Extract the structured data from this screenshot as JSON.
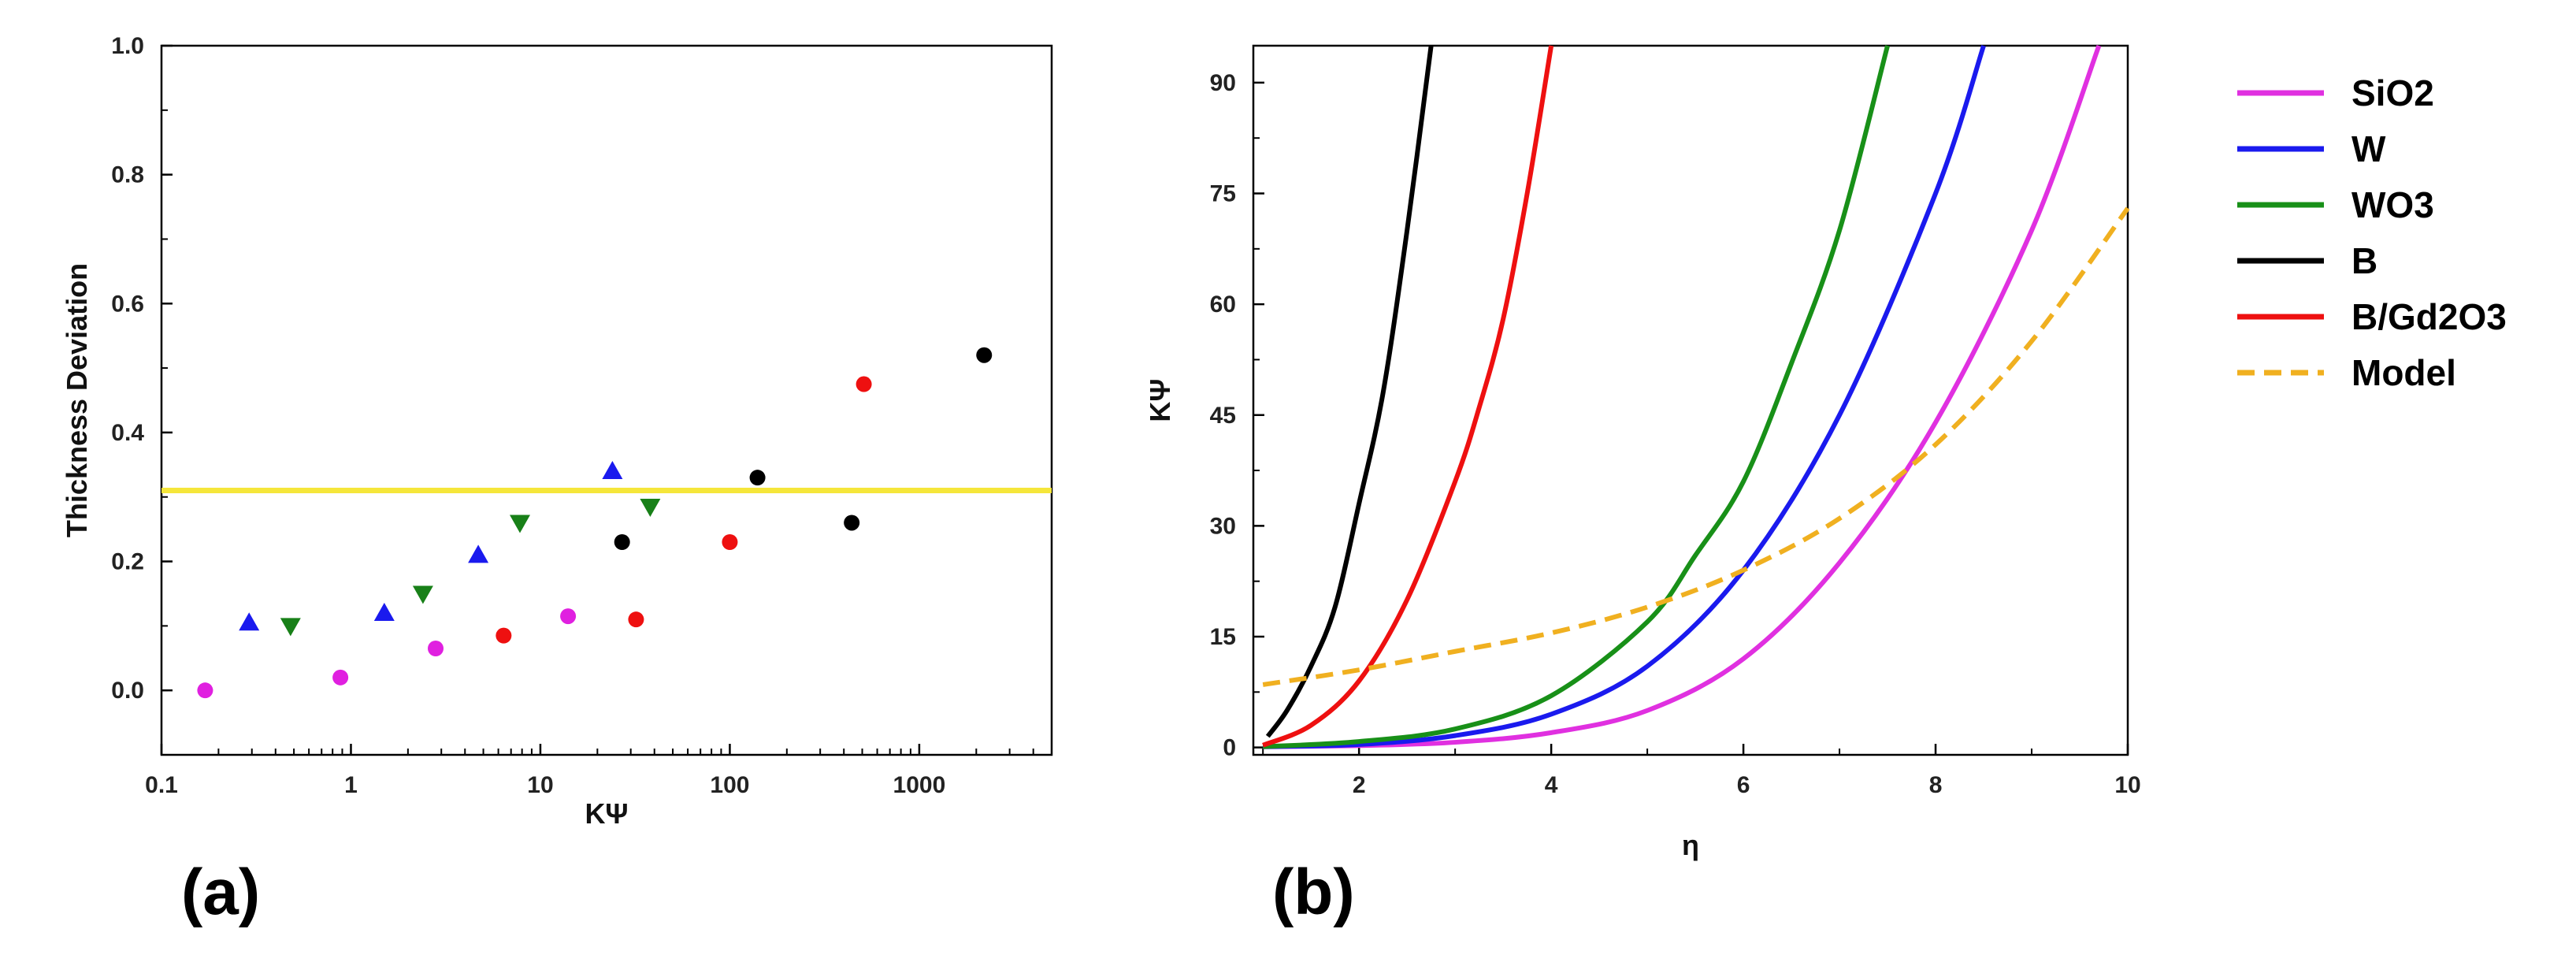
{
  "chart_data": [
    {
      "type": "scatter",
      "panel": "(a)",
      "xlabel": "KΨ",
      "ylabel": "Thickness Deviation",
      "xscale": "log",
      "xlim": [
        0.1,
        5000
      ],
      "ylim": [
        -0.1,
        1.0
      ],
      "xticks": [
        0.1,
        1,
        10,
        100,
        1000
      ],
      "xtick_labels": [
        "0.1",
        "1",
        "10",
        "100",
        "1000"
      ],
      "yticks": [
        0.0,
        0.2,
        0.4,
        0.6,
        0.8,
        1.0
      ],
      "ytick_labels": [
        "0.0",
        "0.2",
        "0.4",
        "0.6",
        "0.8",
        "1.0"
      ],
      "reference_line": {
        "y": 0.31,
        "color": "#f5e63a"
      },
      "series": [
        {
          "name": "magenta circles",
          "marker": "circle",
          "color": "#e020e0",
          "points": [
            [
              0.17,
              0.0
            ],
            [
              0.88,
              0.02
            ],
            [
              2.8,
              0.065
            ],
            [
              14,
              0.115
            ]
          ]
        },
        {
          "name": "blue triangles",
          "marker": "triangle-up",
          "color": "#1a1aee",
          "points": [
            [
              0.29,
              0.105
            ],
            [
              1.5,
              0.12
            ],
            [
              4.7,
              0.21
            ],
            [
              24,
              0.34
            ]
          ]
        },
        {
          "name": "green triangles",
          "marker": "triangle-down",
          "color": "#188018",
          "points": [
            [
              0.48,
              0.1
            ],
            [
              2.4,
              0.15
            ],
            [
              7.8,
              0.26
            ],
            [
              38,
              0.285
            ]
          ]
        },
        {
          "name": "red circles",
          "marker": "circle",
          "color": "#ee1010",
          "points": [
            [
              6.4,
              0.085
            ],
            [
              32,
              0.11
            ],
            [
              100,
              0.23
            ],
            [
              510,
              0.475
            ]
          ]
        },
        {
          "name": "black circles",
          "marker": "circle",
          "color": "#000000",
          "points": [
            [
              27,
              0.23
            ],
            [
              140,
              0.33
            ],
            [
              440,
              0.26
            ],
            [
              2200,
              0.52
            ]
          ]
        }
      ]
    },
    {
      "type": "line",
      "panel": "(b)",
      "xlabel": "η",
      "ylabel": "KΨ",
      "xlim": [
        0.9,
        10
      ],
      "ylim": [
        -1,
        95
      ],
      "xticks": [
        2,
        4,
        6,
        8,
        10
      ],
      "xtick_labels": [
        "2",
        "4",
        "6",
        "8",
        "10"
      ],
      "yticks": [
        0,
        15,
        30,
        45,
        60,
        75,
        90
      ],
      "ytick_labels": [
        "0",
        "15",
        "30",
        "45",
        "60",
        "75",
        "90"
      ],
      "series": [
        {
          "name": "SiO2",
          "color": "#e030e0",
          "dash": false,
          "x": [
            1,
            2,
            3,
            4,
            5,
            6,
            7,
            8,
            9,
            9.7
          ],
          "y": [
            0.1,
            0.25,
            0.7,
            2,
            5,
            12,
            25,
            44,
            70,
            95
          ]
        },
        {
          "name": "W",
          "color": "#1a1aee",
          "dash": false,
          "x": [
            1,
            2,
            3,
            4,
            5,
            6,
            7,
            8,
            8.5
          ],
          "y": [
            0.1,
            0.4,
            1.6,
            4.5,
            11,
            24,
            45,
            75,
            95
          ]
        },
        {
          "name": "WO3",
          "color": "#189018",
          "dash": false,
          "x": [
            1,
            2,
            3,
            4,
            5,
            5.5,
            6,
            6.5,
            7,
            7.5
          ],
          "y": [
            0.1,
            0.8,
            2.5,
            7,
            17,
            26,
            36,
            52,
            70,
            95
          ]
        },
        {
          "name": "B",
          "color": "#000000",
          "dash": false,
          "x": [
            1.05,
            1.25,
            1.5,
            1.75,
            2,
            2.25,
            2.5,
            2.75
          ],
          "y": [
            1.5,
            5,
            11,
            19,
            33,
            48,
            70,
            95
          ]
        },
        {
          "name": "B/Gd2O3",
          "color": "#ee1010",
          "dash": false,
          "x": [
            1,
            1.5,
            2,
            2.5,
            3,
            3.25,
            3.5,
            3.75,
            4
          ],
          "y": [
            0.3,
            3,
            9,
            20,
            36,
            46,
            58,
            75,
            95
          ]
        },
        {
          "name": "Model",
          "color": "#f0b020",
          "dash": true,
          "x": [
            1,
            2,
            3,
            4,
            5,
            6,
            7,
            8,
            9,
            10
          ],
          "y": [
            8.5,
            10.5,
            13,
            15.5,
            19,
            24,
            31,
            41,
            55,
            73
          ]
        }
      ]
    }
  ],
  "labels": {
    "panel_a": "(a)",
    "panel_b": "(b)"
  }
}
